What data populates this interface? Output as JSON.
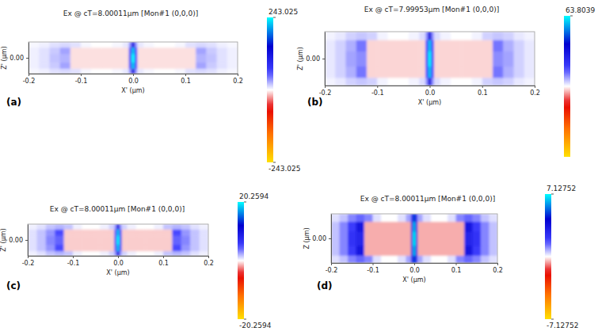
{
  "chart_data": [
    {
      "type": "heatmap",
      "panel_label": "(a)",
      "title": "Ex @ cT=8.00011µm [Mon#1 (0,0,0)]",
      "x_label": "X' (µm)",
      "y_label": "Z' (µm)",
      "xlim": [
        -0.2,
        0.2
      ],
      "xticks": [
        -0.2,
        -0.1,
        {
          "value": 0,
          "label": "0.0"
        },
        0.1,
        0.2
      ],
      "ylim": [
        -0.03,
        0.03
      ],
      "yticks": [
        {
          "value": 0,
          "label": "0.00"
        }
      ],
      "x_edges": [
        -0.2,
        -0.18,
        -0.16,
        -0.14,
        -0.12,
        -0.1,
        -0.08,
        -0.06,
        -0.04,
        -0.02,
        -0.008,
        -0.003,
        0.003,
        0.008,
        0.02,
        0.04,
        0.06,
        0.08,
        0.1,
        0.12,
        0.14,
        0.16,
        0.18,
        0.2
      ],
      "y_edges": [
        -0.03,
        -0.02,
        -0.008,
        0.008,
        0.02,
        0.03
      ],
      "cells": [
        [
          2.4,
          4.9,
          9.7,
          12.2,
          9.7,
          2.4,
          0,
          0,
          2.4,
          7.3,
          36.5,
          121.5,
          36.5,
          7.3,
          2.4,
          0,
          0,
          2.4,
          9.7,
          12.2,
          9.7,
          4.9,
          2.4
        ],
        [
          4.9,
          9.7,
          17,
          29.2,
          -7.3,
          -7.3,
          -7.3,
          -7.3,
          -7.3,
          -7.3,
          60.8,
          218.7,
          60.8,
          -7.3,
          -7.3,
          -7.3,
          -7.3,
          -7.3,
          -7.3,
          29.2,
          17,
          9.7,
          4.9
        ],
        [
          4.9,
          9.7,
          19.4,
          24.3,
          -7.3,
          -7.3,
          -7.3,
          -7.3,
          -7.3,
          -7.3,
          72.9,
          240,
          72.9,
          -7.3,
          -7.3,
          -7.3,
          -7.3,
          -7.3,
          -7.3,
          24.3,
          19.4,
          9.7,
          4.9
        ],
        [
          4.9,
          9.7,
          17,
          29.2,
          -7.3,
          -7.3,
          -7.3,
          -7.3,
          -7.3,
          -7.3,
          60.8,
          218.7,
          60.8,
          -7.3,
          -7.3,
          -7.3,
          -7.3,
          -7.3,
          -7.3,
          29.2,
          17,
          9.7,
          4.9
        ],
        [
          2.4,
          4.9,
          9.7,
          12.2,
          9.7,
          2.4,
          0,
          0,
          2.4,
          7.3,
          36.5,
          121.5,
          36.5,
          7.3,
          2.4,
          0,
          0,
          2.4,
          9.7,
          12.2,
          9.7,
          4.9,
          2.4
        ]
      ],
      "colorbar": {
        "range": [
          -243.025,
          243.025
        ],
        "ticks": [
          243.025,
          -243.025
        ]
      }
    },
    {
      "type": "heatmap",
      "panel_label": "(b)",
      "title": "Ex @ cT=7.99953µm [Mon#1 (0,0,0)]",
      "x_label": "X' (µm)",
      "y_label": "Z' (µm)",
      "xlim": [
        -0.2,
        0.2
      ],
      "xticks": [
        -0.2,
        -0.1,
        {
          "value": 0,
          "label": "0.0"
        },
        0.1,
        0.2
      ],
      "ylim": [
        -0.05,
        0.05
      ],
      "yticks": [
        {
          "value": 0,
          "label": "0.00"
        }
      ],
      "x_edges": [
        -0.2,
        -0.18,
        -0.16,
        -0.14,
        -0.12,
        -0.1,
        -0.08,
        -0.06,
        -0.04,
        -0.02,
        -0.008,
        -0.003,
        0.003,
        0.008,
        0.02,
        0.04,
        0.06,
        0.08,
        0.1,
        0.12,
        0.14,
        0.16,
        0.18,
        0.2
      ],
      "y_edges": [
        -0.05,
        -0.035,
        -0.014,
        0.014,
        0.035,
        0.05
      ],
      "cells": [
        [
          1.0,
          1.9,
          3.8,
          4.8,
          3.8,
          1.0,
          0,
          0,
          1.0,
          2.9,
          9.6,
          31.9,
          9.6,
          2.9,
          1.0,
          0,
          0,
          1.0,
          3.8,
          4.8,
          3.8,
          1.9,
          1.0
        ],
        [
          1.9,
          3.8,
          6.7,
          11.5,
          -2.6,
          -2.6,
          -2.6,
          -2.6,
          -2.6,
          -2.6,
          16,
          57.4,
          16,
          -2.6,
          -2.6,
          -2.6,
          -2.6,
          -2.6,
          -2.6,
          11.5,
          6.7,
          3.8,
          1.9
        ],
        [
          1.9,
          3.8,
          7.7,
          9.6,
          -2.6,
          -2.6,
          -2.6,
          -2.6,
          -2.6,
          -2.6,
          19.1,
          63,
          19.1,
          -2.6,
          -2.6,
          -2.6,
          -2.6,
          -2.6,
          -2.6,
          9.6,
          7.7,
          3.8,
          1.9
        ],
        [
          1.9,
          3.8,
          6.7,
          11.5,
          -2.6,
          -2.6,
          -2.6,
          -2.6,
          -2.6,
          -2.6,
          16,
          57.4,
          16,
          -2.6,
          -2.6,
          -2.6,
          -2.6,
          -2.6,
          -2.6,
          11.5,
          6.7,
          3.8,
          1.9
        ],
        [
          1.0,
          1.9,
          3.8,
          4.8,
          3.8,
          1.0,
          0,
          0,
          1.0,
          2.9,
          9.6,
          31.9,
          9.6,
          2.9,
          1.0,
          0,
          0,
          1.0,
          3.8,
          4.8,
          3.8,
          1.9,
          1.0
        ]
      ],
      "colorbar": {
        "range": [
          -63.8039,
          63.8039
        ],
        "ticks": [
          63.8039
        ]
      }
    },
    {
      "type": "heatmap",
      "panel_label": "(c)",
      "title": "Ex @ cT=8.00011µm [Mon#1 (0,0,0)]",
      "x_label": "X' (µm)",
      "y_label": "Z' (µm)",
      "xlim": [
        -0.2,
        0.2
      ],
      "xticks": [
        -0.2,
        -0.1,
        {
          "value": 0,
          "label": "0.0"
        },
        0.1,
        0.2
      ],
      "ylim": [
        -0.035,
        0.035
      ],
      "yticks": [
        {
          "value": 0,
          "label": "0.00"
        }
      ],
      "x_edges": [
        -0.2,
        -0.18,
        -0.16,
        -0.14,
        -0.12,
        -0.1,
        -0.08,
        -0.06,
        -0.04,
        -0.02,
        -0.008,
        -0.003,
        0.003,
        0.008,
        0.02,
        0.04,
        0.06,
        0.08,
        0.1,
        0.12,
        0.14,
        0.16,
        0.18,
        0.2
      ],
      "y_edges": [
        -0.035,
        -0.024,
        -0.01,
        0.01,
        0.024,
        0.035
      ],
      "cells": [
        [
          0.4,
          0.8,
          1.6,
          2.0,
          1.6,
          0.4,
          0,
          0,
          0.4,
          1.2,
          3.0,
          10.1,
          3.0,
          1.2,
          0.4,
          0,
          0,
          0.4,
          1.6,
          2.0,
          1.6,
          0.8,
          0.4
        ],
        [
          0.8,
          1.6,
          2.8,
          4.9,
          -1.0,
          -1.0,
          -1.0,
          -1.0,
          -1.0,
          -1.0,
          5.1,
          18.2,
          5.1,
          -1.0,
          -1.0,
          -1.0,
          -1.0,
          -1.0,
          -1.0,
          4.9,
          2.8,
          1.6,
          0.8
        ],
        [
          0.8,
          1.6,
          3.2,
          4.1,
          -1.0,
          -1.0,
          -1.0,
          -1.0,
          -1.0,
          -1.0,
          6.1,
          20,
          6.1,
          -1.0,
          -1.0,
          -1.0,
          -1.0,
          -1.0,
          -1.0,
          4.1,
          3.2,
          1.6,
          0.8
        ],
        [
          0.8,
          1.6,
          2.8,
          4.9,
          -1.0,
          -1.0,
          -1.0,
          -1.0,
          -1.0,
          -1.0,
          5.1,
          18.2,
          5.1,
          -1.0,
          -1.0,
          -1.0,
          -1.0,
          -1.0,
          -1.0,
          4.9,
          2.8,
          1.6,
          0.8
        ],
        [
          0.4,
          0.8,
          1.6,
          2.0,
          1.6,
          0.4,
          0,
          0,
          0.4,
          1.2,
          3.0,
          10.1,
          3.0,
          1.2,
          0.4,
          0,
          0,
          0.4,
          1.6,
          2.0,
          1.6,
          0.8,
          0.4
        ]
      ],
      "colorbar": {
        "range": [
          -20.2594,
          20.2594
        ],
        "ticks": [
          20.2594,
          -20.2594
        ]
      }
    },
    {
      "type": "heatmap",
      "panel_label": "(d)",
      "title": "Ex @ cT=8.00011µm [Mon#1 (0,0,0)]",
      "x_label": "X' (µm)",
      "y_label": "Z (µm)",
      "xlim": [
        -0.2,
        0.2
      ],
      "xticks": [
        -0.2,
        -0.1,
        {
          "value": 0,
          "label": "0.0"
        },
        0.1,
        0.2
      ],
      "ylim": [
        -0.055,
        0.055
      ],
      "yticks": [
        {
          "value": 0,
          "label": "0.00"
        }
      ],
      "x_edges": [
        -0.2,
        -0.18,
        -0.16,
        -0.14,
        -0.12,
        -0.1,
        -0.08,
        -0.06,
        -0.04,
        -0.02,
        -0.008,
        -0.003,
        0.003,
        0.008,
        0.02,
        0.04,
        0.06,
        0.08,
        0.1,
        0.12,
        0.14,
        0.16,
        0.18,
        0.2
      ],
      "y_edges": [
        -0.055,
        -0.038,
        -0.016,
        0.016,
        0.038,
        0.055
      ],
      "cells": [
        [
          0.29,
          0.57,
          1.14,
          1.43,
          1.14,
          0.29,
          0,
          0,
          0.29,
          0.86,
          2.85,
          5.0,
          2.85,
          0.86,
          0.29,
          0,
          0,
          0.29,
          1.14,
          1.43,
          1.14,
          0.57,
          0.29
        ],
        [
          0.57,
          1.14,
          2.0,
          3.42,
          -0.57,
          -0.57,
          -0.57,
          -0.57,
          -0.57,
          -0.57,
          3.56,
          6.4,
          3.56,
          -0.57,
          -0.57,
          -0.57,
          -0.57,
          -0.57,
          -0.57,
          3.42,
          2.0,
          1.14,
          0.57
        ],
        [
          0.57,
          1.14,
          2.28,
          2.85,
          -0.57,
          -0.57,
          -0.57,
          -0.57,
          -0.57,
          -0.57,
          3.9,
          7.1,
          3.9,
          -0.57,
          -0.57,
          -0.57,
          -0.57,
          -0.57,
          -0.57,
          2.85,
          2.28,
          1.14,
          0.57
        ],
        [
          0.57,
          1.14,
          2.0,
          3.42,
          -0.57,
          -0.57,
          -0.57,
          -0.57,
          -0.57,
          -0.57,
          3.56,
          6.4,
          3.56,
          -0.57,
          -0.57,
          -0.57,
          -0.57,
          -0.57,
          -0.57,
          3.42,
          2.0,
          1.14,
          0.57
        ],
        [
          0.29,
          0.57,
          1.14,
          1.43,
          1.14,
          0.29,
          0,
          0,
          0.29,
          0.86,
          2.85,
          5.0,
          2.85,
          0.86,
          0.29,
          0,
          0,
          0.29,
          1.14,
          1.43,
          1.14,
          0.57,
          0.29
        ]
      ],
      "colorbar": {
        "range": [
          -7.12752,
          7.12752
        ],
        "ticks": [
          7.12752,
          -7.12752
        ]
      }
    }
  ]
}
